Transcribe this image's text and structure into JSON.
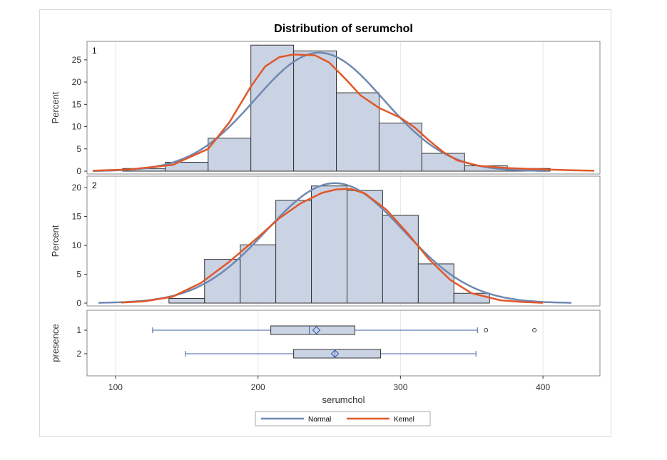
{
  "chart_data": {
    "type": "histogram",
    "title": "Distribution of serumchol",
    "xlabel": "serumchol",
    "x_ticks": [
      100,
      200,
      300,
      400
    ],
    "xlim": [
      80,
      440
    ],
    "colors": {
      "bar_fill": "#cad3e4",
      "bar_stroke": "#333333",
      "normal": "#6f88b1",
      "kernel": "#e0582a",
      "box": "#3f5fae",
      "grid": "#e6e6e6",
      "panel_border": "#888888"
    },
    "panels": [
      {
        "label": "1",
        "ylabel": "Percent",
        "ylim": [
          0,
          28.5
        ],
        "y_ticks": [
          0,
          5,
          10,
          15,
          20,
          25
        ],
        "bin_edges": [
          105,
          135,
          165,
          195,
          225,
          255,
          285,
          315,
          345,
          375,
          405
        ],
        "percent": [
          0.6,
          2.0,
          7.4,
          28.3,
          27.0,
          17.6,
          10.8,
          4.0,
          1.2,
          0.6
        ],
        "normal": {
          "mean": 243,
          "sd": 45
        },
        "kernel_curve": [
          [
            84,
            0.1
          ],
          [
            110,
            0.4
          ],
          [
            140,
            1.4
          ],
          [
            165,
            5.0
          ],
          [
            180,
            11.0
          ],
          [
            195,
            19.0
          ],
          [
            205,
            23.5
          ],
          [
            215,
            25.6
          ],
          [
            225,
            26.2
          ],
          [
            240,
            26.0
          ],
          [
            250,
            24.4
          ],
          [
            262,
            20.5
          ],
          [
            272,
            17.0
          ],
          [
            285,
            14.2
          ],
          [
            300,
            12.0
          ],
          [
            310,
            9.8
          ],
          [
            320,
            6.9
          ],
          [
            330,
            4.3
          ],
          [
            340,
            2.4
          ],
          [
            355,
            1.2
          ],
          [
            375,
            0.7
          ],
          [
            400,
            0.4
          ],
          [
            420,
            0.2
          ],
          [
            436,
            0.1
          ]
        ]
      },
      {
        "label": "2",
        "ylabel": "Percent",
        "ylim": [
          0,
          21.5
        ],
        "y_ticks": [
          0,
          5,
          10,
          15,
          20
        ],
        "bin_edges": [
          137.5,
          162.5,
          187.5,
          212.5,
          237.5,
          262.5,
          287.5,
          312.5,
          337.5,
          362.5
        ],
        "percent": [
          0.8,
          7.6,
          10.1,
          17.8,
          20.3,
          19.5,
          15.2,
          6.8,
          1.7
        ],
        "normal": {
          "mean": 254,
          "sd": 48
        },
        "kernel_curve": [
          [
            104,
            0.1
          ],
          [
            120,
            0.3
          ],
          [
            140,
            1.1
          ],
          [
            160,
            3.5
          ],
          [
            180,
            7.2
          ],
          [
            200,
            11.4
          ],
          [
            215,
            14.7
          ],
          [
            230,
            17.3
          ],
          [
            245,
            19.1
          ],
          [
            255,
            19.7
          ],
          [
            265,
            19.8
          ],
          [
            275,
            19.0
          ],
          [
            290,
            16.2
          ],
          [
            305,
            12.1
          ],
          [
            320,
            7.6
          ],
          [
            335,
            4.0
          ],
          [
            350,
            1.7
          ],
          [
            370,
            0.5
          ],
          [
            385,
            0.2
          ],
          [
            400,
            0.05
          ]
        ]
      }
    ],
    "box_panel": {
      "ylabel": "presence",
      "categories": [
        "1",
        "2"
      ],
      "boxes": [
        {
          "min": 126,
          "q1": 209,
          "median": 236,
          "mean": 241,
          "q3": 268,
          "max": 354,
          "outliers": [
            360,
            394
          ]
        },
        {
          "min": 149,
          "q1": 225,
          "median": 254,
          "mean": 254,
          "q3": 286,
          "max": 353,
          "outliers": []
        }
      ]
    },
    "legend": [
      "Normal",
      "Kernel"
    ],
    "legend_position": "bottom-center"
  }
}
